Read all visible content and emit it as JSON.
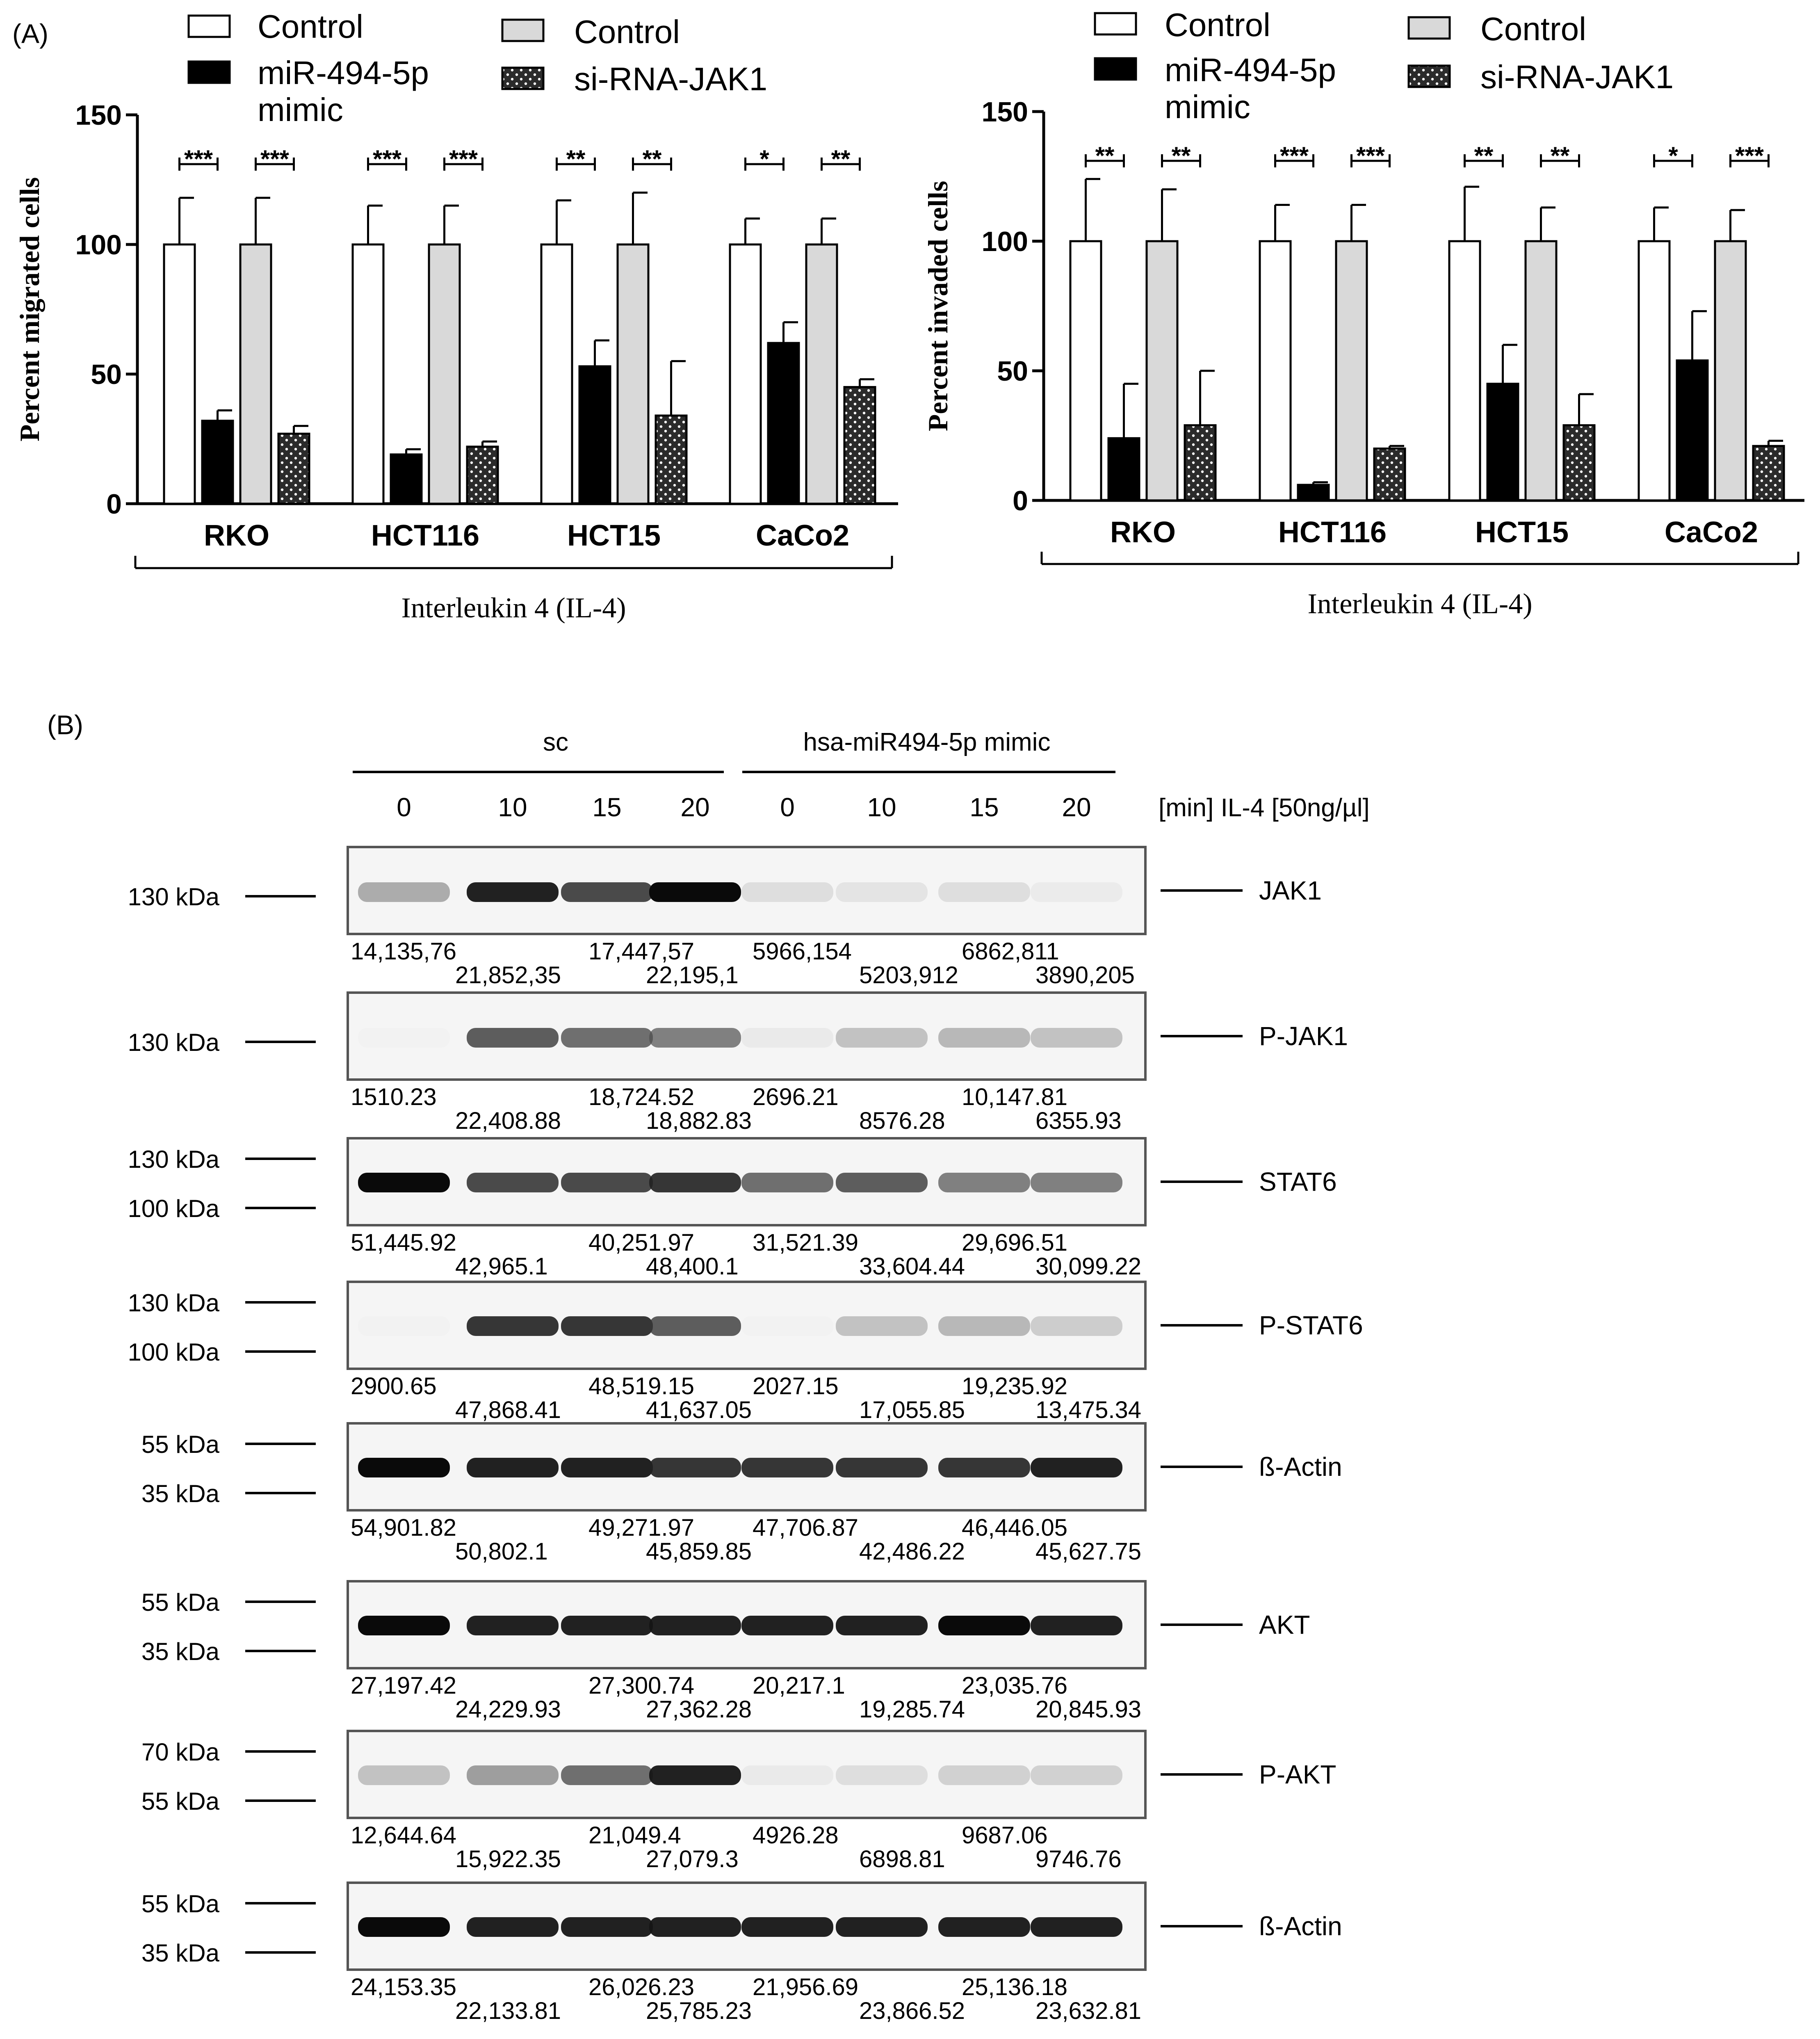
{
  "panel_a_label": "(A)",
  "panel_b_label": "(B)",
  "legend": {
    "group1": [
      "Control",
      "miR-494-5p mimic"
    ],
    "group2": [
      "Control",
      "si-RNA-JAK1"
    ]
  },
  "colors": {
    "control": "#ffffff",
    "mir494": "#000000",
    "control_grey": "#d9d9d9",
    "sirna": "#2b2b2b"
  },
  "chart_data": [
    {
      "type": "bar",
      "categories": [
        "RKO",
        "HCT116",
        "HCT15",
        "CaCo2"
      ],
      "ylabel": "Percent migrated cells",
      "xlabel": "Interleukin 4 (IL-4)",
      "ylim": [
        0,
        150
      ],
      "yticks": [
        0,
        50,
        100,
        150
      ],
      "series": [
        {
          "name": "Control",
          "values": [
            100,
            100,
            100,
            100
          ],
          "errors": [
            18,
            15,
            17,
            10
          ]
        },
        {
          "name": "miR-494-5p mimic",
          "values": [
            32,
            19,
            53,
            62
          ],
          "errors": [
            4,
            2,
            10,
            8
          ]
        },
        {
          "name": "Control",
          "values": [
            100,
            100,
            100,
            100
          ],
          "errors": [
            18,
            15,
            20,
            10
          ]
        },
        {
          "name": "si-RNA-JAK1",
          "values": [
            27,
            22,
            34,
            45
          ],
          "errors": [
            3,
            2,
            21,
            3
          ]
        }
      ],
      "significance": [
        [
          "***",
          "***"
        ],
        [
          "***",
          "***"
        ],
        [
          "**",
          "**"
        ],
        [
          "*",
          "**"
        ]
      ]
    },
    {
      "type": "bar",
      "categories": [
        "RKO",
        "HCT116",
        "HCT15",
        "CaCo2"
      ],
      "ylabel": "Percent invaded cells",
      "xlabel": "Interleukin 4 (IL-4)",
      "ylim": [
        0,
        150
      ],
      "yticks": [
        0,
        50,
        100,
        150
      ],
      "series": [
        {
          "name": "Control",
          "values": [
            100,
            100,
            100,
            100
          ],
          "errors": [
            24,
            14,
            21,
            13
          ]
        },
        {
          "name": "miR-494-5p mimic",
          "values": [
            24,
            6,
            45,
            54
          ],
          "errors": [
            21,
            1,
            15,
            19
          ]
        },
        {
          "name": "Control",
          "values": [
            100,
            100,
            100,
            100
          ],
          "errors": [
            20,
            14,
            13,
            12
          ]
        },
        {
          "name": "si-RNA-JAK1",
          "values": [
            29,
            20,
            29,
            21
          ],
          "errors": [
            21,
            1,
            12,
            2
          ]
        }
      ],
      "significance": [
        [
          "**",
          "**"
        ],
        [
          "***",
          "***"
        ],
        [
          "**",
          "**"
        ],
        [
          "*",
          "***"
        ]
      ]
    }
  ],
  "blot": {
    "group_sc": "sc",
    "group_mimic": "hsa-miR494-5p mimic",
    "timepoints": [
      "0",
      "10",
      "15",
      "20",
      "0",
      "10",
      "15",
      "20"
    ],
    "time_unit_label": "[min] IL-4 [50ng/µl]",
    "rows": [
      {
        "protein": "JAK1",
        "markers": [
          "130 kDa"
        ],
        "intensity": [
          0.55,
          0.95,
          0.85,
          1.0,
          0.3,
          0.25,
          0.3,
          0.18
        ],
        "quant_top": [
          "14,135,76",
          "17,447,57",
          "5966,154",
          "6862,811"
        ],
        "quant_bottom": [
          "21,852,35",
          "22,195,1",
          "5203,912",
          "3890,205"
        ]
      },
      {
        "protein": "P-JAK1",
        "markers": [
          "130 kDa"
        ],
        "intensity": [
          0.03,
          0.8,
          0.75,
          0.7,
          0.2,
          0.45,
          0.5,
          0.45
        ],
        "quant_top": [
          "1510.23",
          "18,724.52",
          "2696.21",
          "10,147.81"
        ],
        "quant_bottom": [
          "22,408.88",
          "18,882.83",
          "8576.28",
          "6355.93"
        ]
      },
      {
        "protein": "STAT6",
        "markers": [
          "130 kDa",
          "100 kDa"
        ],
        "intensity": [
          1.0,
          0.85,
          0.85,
          0.9,
          0.75,
          0.8,
          0.7,
          0.7
        ],
        "quant_top": [
          "51,445.92",
          "40,251.97",
          "31,521.39",
          "29,696.51"
        ],
        "quant_bottom": [
          "42,965.1",
          "48,400.1",
          "33,604.44",
          "30,099.22"
        ]
      },
      {
        "protein": "P-STAT6",
        "markers": [
          "130 kDa",
          "100 kDa"
        ],
        "intensity": [
          0.03,
          0.9,
          0.9,
          0.8,
          0.03,
          0.45,
          0.5,
          0.4
        ],
        "quant_top": [
          "2900.65",
          "48,519.15",
          "2027.15",
          "19,235.92"
        ],
        "quant_bottom": [
          "47,868.41",
          "41,637.05",
          "17,055.85",
          "13,475.34"
        ]
      },
      {
        "protein": "ß-Actin",
        "markers": [
          "55 kDa",
          "35 kDa"
        ],
        "intensity": [
          1.0,
          0.95,
          0.95,
          0.9,
          0.9,
          0.9,
          0.9,
          0.95
        ],
        "quant_top": [
          "54,901.82",
          "49,271.97",
          "47,706.87",
          "46,446.05"
        ],
        "quant_bottom": [
          "50,802.1",
          "45,859.85",
          "42,486.22",
          "45,627.75"
        ]
      },
      {
        "protein": "AKT",
        "markers": [
          "55 kDa",
          "35 kDa"
        ],
        "intensity": [
          1.0,
          0.95,
          0.95,
          0.95,
          0.95,
          0.95,
          1.0,
          0.95
        ],
        "quant_top": [
          "27,197.42",
          "27,300.74",
          "20,217.1",
          "23,035.76"
        ],
        "quant_bottom": [
          "24,229.93",
          "27,362.28",
          "19,285.74",
          "20,845.93"
        ]
      },
      {
        "protein": "P-AKT",
        "markers": [
          "70 kDa",
          "55 kDa"
        ],
        "intensity": [
          0.45,
          0.6,
          0.75,
          0.95,
          0.2,
          0.3,
          0.38,
          0.38
        ],
        "quant_top": [
          "12,644.64",
          "21,049.4",
          "4926.28",
          "9687.06"
        ],
        "quant_bottom": [
          "15,922.35",
          "27,079.3",
          "6898.81",
          "9746.76"
        ]
      },
      {
        "protein": "ß-Actin",
        "markers": [
          "55 kDa",
          "35 kDa"
        ],
        "intensity": [
          1.0,
          0.95,
          0.95,
          0.95,
          0.95,
          0.95,
          0.95,
          0.95
        ],
        "quant_top": [
          "24,153.35",
          "26,026.23",
          "21,956.69",
          "25,136.18"
        ],
        "quant_bottom": [
          "22,133.81",
          "25,785.23",
          "23,866.52",
          "23,632.81"
        ]
      }
    ]
  }
}
